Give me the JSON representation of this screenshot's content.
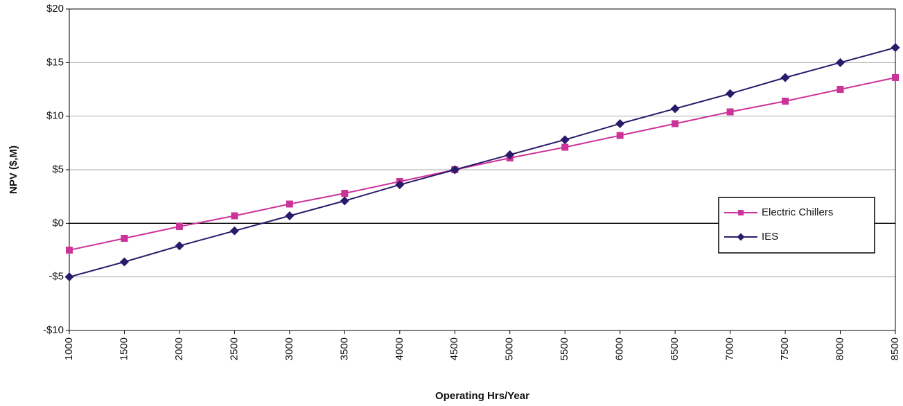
{
  "chart_data": {
    "type": "line",
    "x_label": "Operating Hrs/Year",
    "y_label": "NPV ($,M)",
    "x": [
      1000,
      1500,
      2000,
      2500,
      3000,
      3500,
      4000,
      4500,
      5000,
      5500,
      6000,
      6500,
      7000,
      7500,
      8000,
      8500
    ],
    "xlim": [
      1000,
      8500
    ],
    "xticks": [
      1000,
      1500,
      2000,
      2500,
      3000,
      3500,
      4000,
      4500,
      5000,
      5500,
      6000,
      6500,
      7000,
      7500,
      8000,
      8500
    ],
    "ylim": [
      -10,
      20
    ],
    "yticks": [
      {
        "value": -10,
        "label": "-$10"
      },
      {
        "value": -5,
        "label": "-$5"
      },
      {
        "value": 0,
        "label": "$0"
      },
      {
        "value": 5,
        "label": "$5"
      },
      {
        "value": 10,
        "label": "$10"
      },
      {
        "value": 15,
        "label": "$15"
      },
      {
        "value": 20,
        "label": "$20"
      }
    ],
    "grid": true,
    "legend": "lower right",
    "series": [
      {
        "name": "Electric Chillers",
        "color": "#cc3399",
        "marker": "square",
        "values": [
          -2.5,
          -1.4,
          -0.3,
          0.7,
          1.8,
          2.8,
          3.9,
          5.0,
          6.1,
          7.1,
          8.2,
          9.3,
          10.4,
          11.4,
          12.5,
          13.6
        ]
      },
      {
        "name": "IES",
        "color": "#2b1a6b",
        "marker": "diamond",
        "values": [
          -5.0,
          -3.6,
          -2.1,
          -0.7,
          0.7,
          2.1,
          3.6,
          5.0,
          6.4,
          7.8,
          9.3,
          10.7,
          12.1,
          13.6,
          15.0,
          16.4
        ]
      }
    ]
  }
}
